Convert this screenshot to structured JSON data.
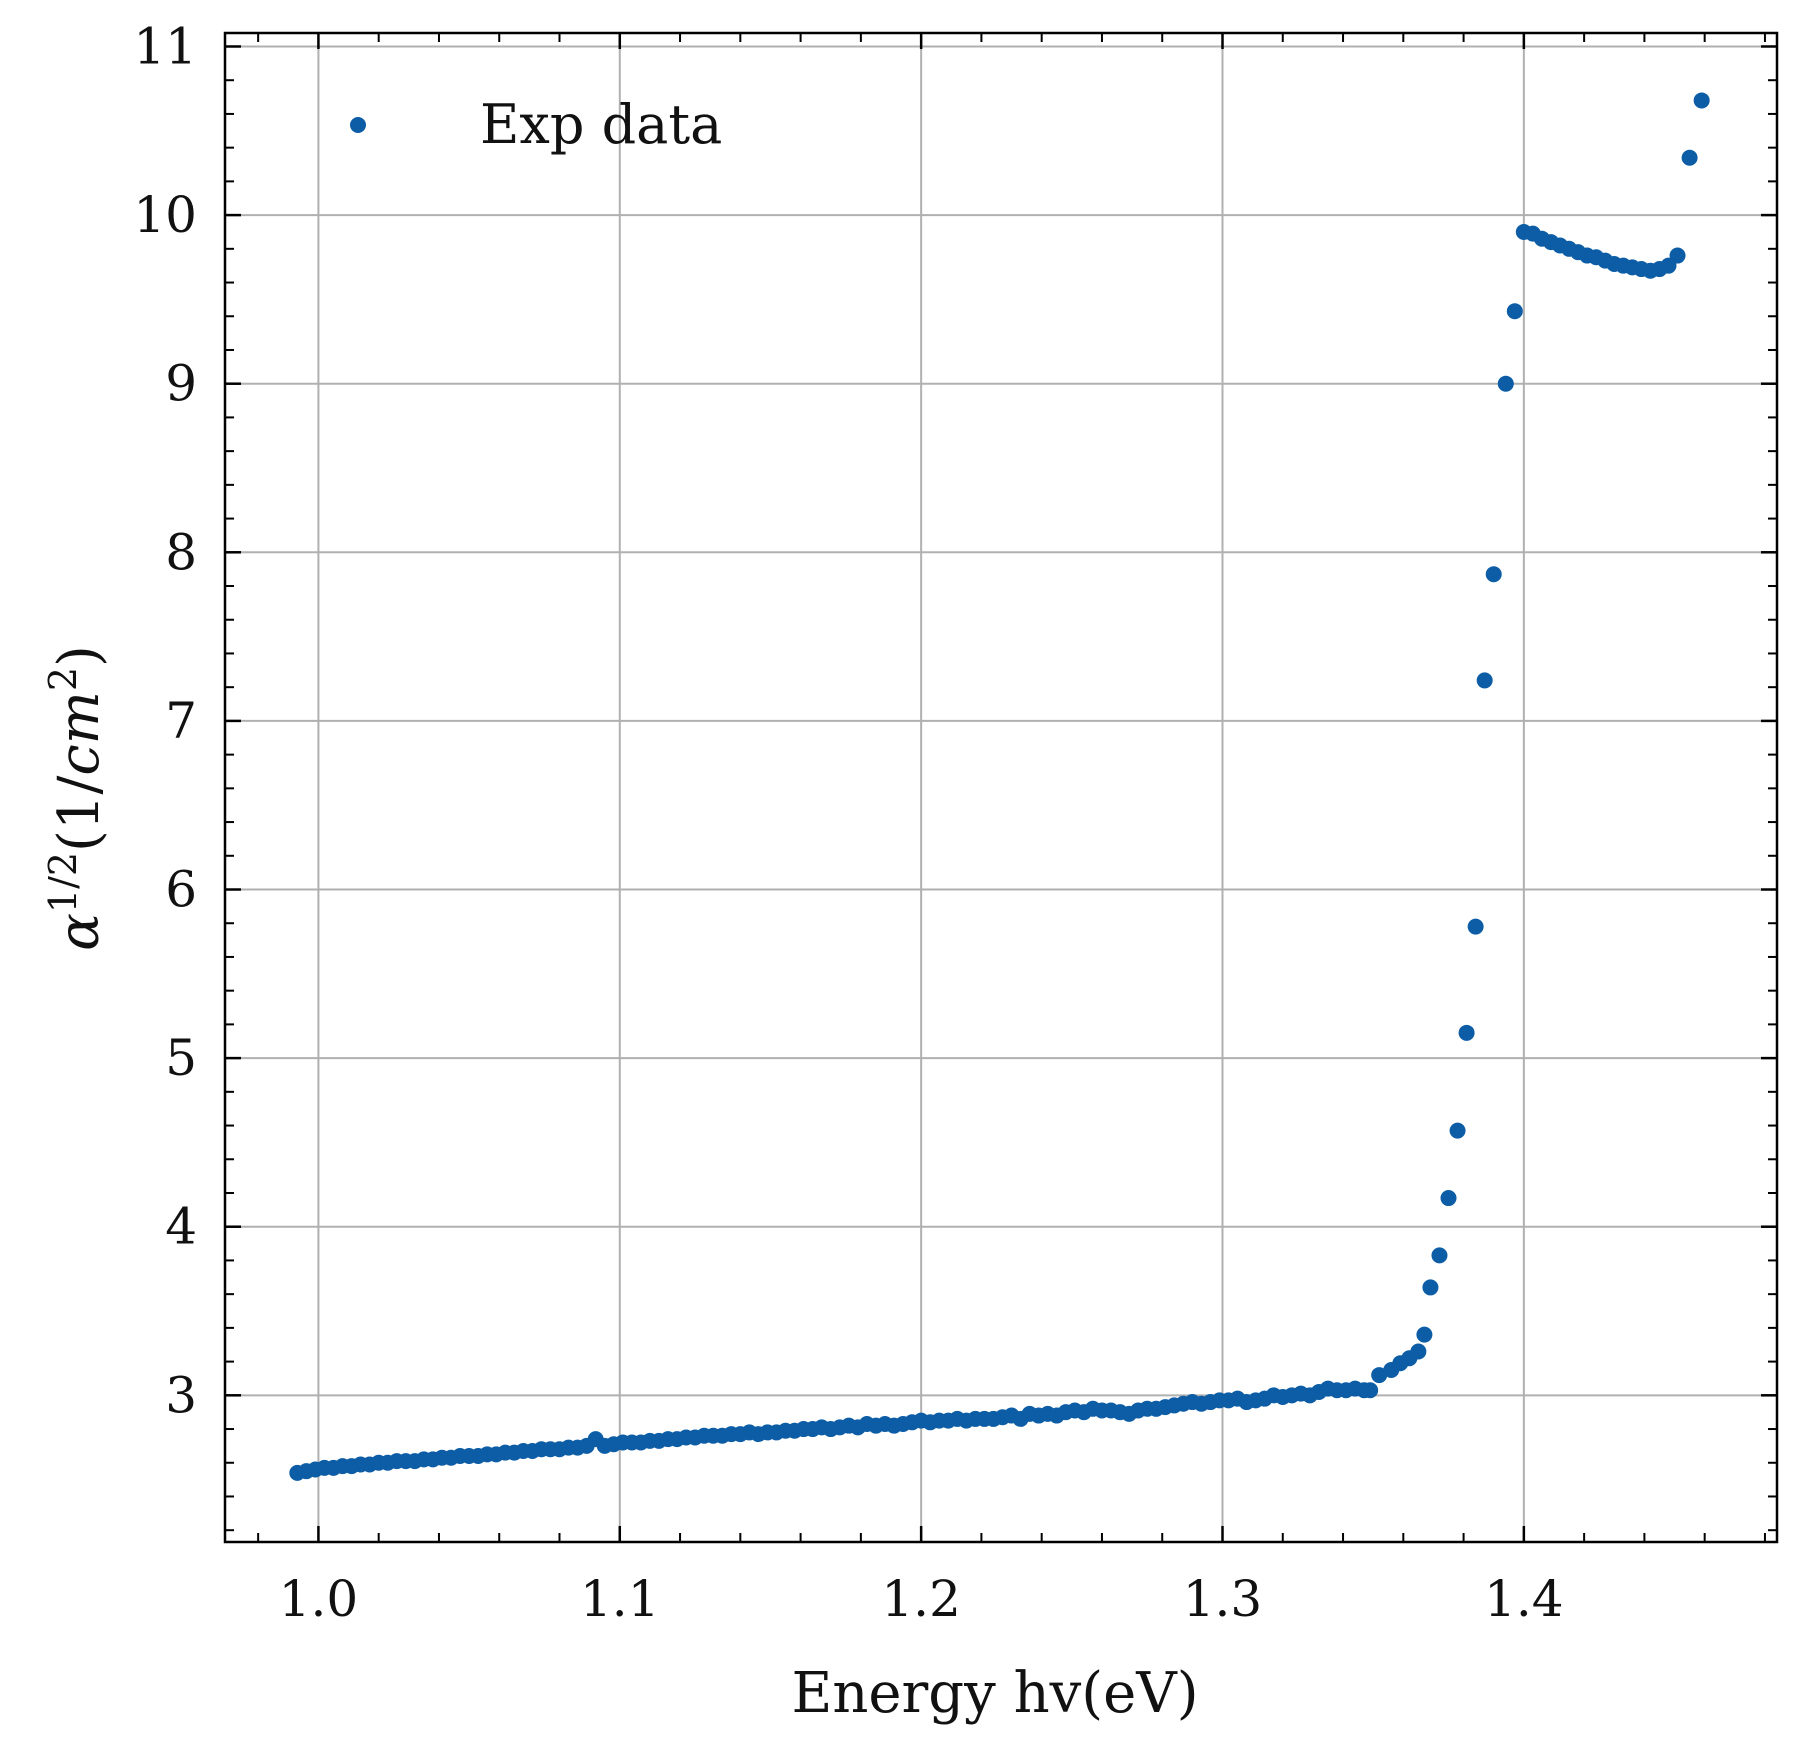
{
  "chart_data": {
    "type": "scatter",
    "xlabel": "Energy hv(eV)",
    "ylabel": "α^{1/2}(1/cm^2)",
    "ylabel_parts": {
      "alpha": "α",
      "exp": "1/2",
      "unit_open": "(1/",
      "unit_var": "cm",
      "unit_exp": "2",
      "unit_close": ")"
    },
    "xlim": [
      0.969,
      1.484
    ],
    "ylim": [
      2.13,
      11.08
    ],
    "x_ticks": [
      1.0,
      1.1,
      1.2,
      1.3,
      1.4
    ],
    "x_tick_labels": [
      "1.0",
      "1.1",
      "1.2",
      "1.3",
      "1.4"
    ],
    "y_ticks": [
      3,
      4,
      5,
      6,
      7,
      8,
      9,
      10,
      11
    ],
    "y_tick_labels": [
      "3",
      "4",
      "5",
      "6",
      "7",
      "8",
      "9",
      "10",
      "11"
    ],
    "grid": true,
    "legend": {
      "position": "top-left",
      "entries": [
        "Exp data"
      ]
    },
    "series": [
      {
        "name": "Exp data",
        "color": "#0c5da5",
        "x": [
          0.993,
          0.996,
          0.999,
          1.002,
          1.005,
          1.008,
          1.011,
          1.014,
          1.017,
          1.02,
          1.023,
          1.026,
          1.029,
          1.032,
          1.035,
          1.038,
          1.041,
          1.044,
          1.047,
          1.05,
          1.053,
          1.056,
          1.059,
          1.062,
          1.065,
          1.068,
          1.071,
          1.074,
          1.077,
          1.08,
          1.083,
          1.086,
          1.089,
          1.092,
          1.095,
          1.098,
          1.101,
          1.104,
          1.107,
          1.11,
          1.113,
          1.116,
          1.119,
          1.122,
          1.125,
          1.128,
          1.131,
          1.134,
          1.137,
          1.14,
          1.143,
          1.146,
          1.149,
          1.152,
          1.155,
          1.158,
          1.161,
          1.164,
          1.167,
          1.17,
          1.173,
          1.176,
          1.179,
          1.182,
          1.185,
          1.188,
          1.191,
          1.194,
          1.197,
          1.2,
          1.203,
          1.206,
          1.209,
          1.212,
          1.215,
          1.218,
          1.221,
          1.224,
          1.227,
          1.23,
          1.233,
          1.236,
          1.239,
          1.242,
          1.245,
          1.248,
          1.251,
          1.254,
          1.257,
          1.26,
          1.263,
          1.266,
          1.269,
          1.272,
          1.275,
          1.278,
          1.281,
          1.284,
          1.287,
          1.29,
          1.293,
          1.296,
          1.299,
          1.302,
          1.305,
          1.308,
          1.311,
          1.314,
          1.317,
          1.32,
          1.323,
          1.326,
          1.329,
          1.332,
          1.335,
          1.338,
          1.341,
          1.344,
          1.347,
          1.349,
          1.352,
          1.356,
          1.359,
          1.362,
          1.365,
          1.367,
          1.369,
          1.372,
          1.375,
          1.378,
          1.381,
          1.384,
          1.387,
          1.39,
          1.394,
          1.397,
          1.4,
          1.403,
          1.406,
          1.409,
          1.412,
          1.415,
          1.418,
          1.421,
          1.424,
          1.427,
          1.43,
          1.433,
          1.436,
          1.439,
          1.442,
          1.445,
          1.448,
          1.451,
          1.455,
          1.459
        ],
        "y": [
          2.54,
          2.55,
          2.56,
          2.57,
          2.57,
          2.58,
          2.58,
          2.59,
          2.59,
          2.6,
          2.6,
          2.61,
          2.61,
          2.61,
          2.62,
          2.62,
          2.63,
          2.63,
          2.64,
          2.64,
          2.64,
          2.65,
          2.65,
          2.66,
          2.66,
          2.67,
          2.67,
          2.68,
          2.68,
          2.68,
          2.69,
          2.69,
          2.7,
          2.74,
          2.7,
          2.71,
          2.72,
          2.72,
          2.72,
          2.73,
          2.73,
          2.74,
          2.74,
          2.75,
          2.75,
          2.76,
          2.76,
          2.76,
          2.77,
          2.77,
          2.78,
          2.77,
          2.78,
          2.78,
          2.79,
          2.79,
          2.8,
          2.8,
          2.81,
          2.8,
          2.81,
          2.82,
          2.81,
          2.83,
          2.82,
          2.83,
          2.82,
          2.83,
          2.84,
          2.85,
          2.84,
          2.85,
          2.85,
          2.86,
          2.85,
          2.86,
          2.86,
          2.86,
          2.87,
          2.88,
          2.86,
          2.89,
          2.88,
          2.89,
          2.88,
          2.9,
          2.91,
          2.9,
          2.92,
          2.91,
          2.91,
          2.9,
          2.89,
          2.91,
          2.92,
          2.92,
          2.93,
          2.94,
          2.95,
          2.96,
          2.95,
          2.96,
          2.97,
          2.97,
          2.98,
          2.96,
          2.97,
          2.98,
          3.0,
          2.99,
          3.0,
          3.01,
          3.0,
          3.02,
          3.04,
          3.03,
          3.03,
          3.04,
          3.03,
          3.03,
          3.12,
          3.15,
          3.19,
          3.22,
          3.26,
          3.36,
          3.64,
          3.83,
          4.17,
          4.57,
          5.15,
          5.78,
          7.24,
          7.87,
          9.0,
          9.43,
          9.9,
          9.89,
          9.86,
          9.84,
          9.82,
          9.8,
          9.78,
          9.76,
          9.75,
          9.73,
          9.71,
          9.7,
          9.69,
          9.68,
          9.67,
          9.68,
          9.7,
          9.76,
          10.34,
          10.68
        ]
      }
    ]
  }
}
